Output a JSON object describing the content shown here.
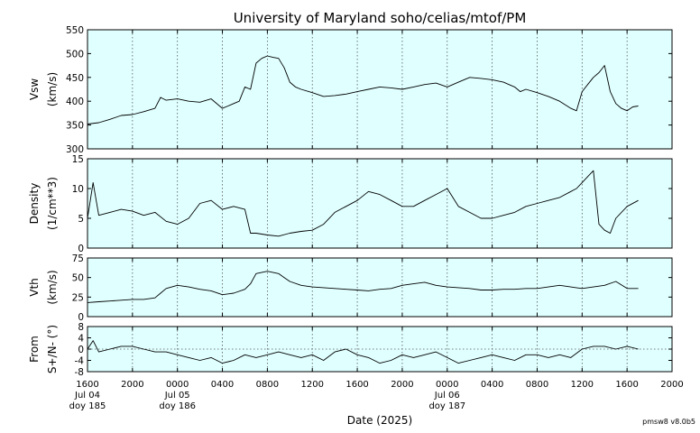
{
  "chart_data": {
    "type": "line",
    "title": "University of Maryland  soho/celias/mtof/PM",
    "xlabel": "Date (2025)",
    "credit": "pmsw8 v8.0b5",
    "grid": true,
    "background_color": "#e0ffff",
    "line_color": "#000000",
    "x_ticks": [
      {
        "hour": 0,
        "lines": [
          "1600",
          "Jul 04",
          "doy 185"
        ]
      },
      {
        "hour": 4,
        "lines": [
          "2000"
        ]
      },
      {
        "hour": 8,
        "lines": [
          "0000",
          "Jul 05",
          "doy 186"
        ]
      },
      {
        "hour": 12,
        "lines": [
          "0400"
        ]
      },
      {
        "hour": 16,
        "lines": [
          "0800"
        ]
      },
      {
        "hour": 20,
        "lines": [
          "1200"
        ]
      },
      {
        "hour": 24,
        "lines": [
          "1600"
        ]
      },
      {
        "hour": 28,
        "lines": [
          "2000"
        ]
      },
      {
        "hour": 32,
        "lines": [
          "0000",
          "Jul 06",
          "doy 187"
        ]
      },
      {
        "hour": 36,
        "lines": [
          "0400"
        ]
      },
      {
        "hour": 40,
        "lines": [
          "0800"
        ]
      },
      {
        "hour": 44,
        "lines": [
          "1200"
        ]
      },
      {
        "hour": 48,
        "lines": [
          "1600"
        ]
      },
      {
        "hour": 52,
        "lines": [
          "2000"
        ]
      }
    ],
    "x_range_hours_since_jul04_1600": [
      0,
      52
    ],
    "panels": [
      {
        "ylabel": [
          "Vsw",
          "(km/s)"
        ],
        "ylim": [
          300,
          550
        ],
        "yticks": [
          300,
          350,
          400,
          450,
          500,
          550
        ],
        "zero_line": null,
        "series": {
          "x_hours": [
            0,
            1,
            2,
            3,
            4,
            5,
            6,
            6.5,
            7,
            8,
            9,
            10,
            11,
            12,
            12.5,
            13,
            13.5,
            14,
            14.5,
            15,
            15.5,
            16,
            16.5,
            17,
            17.5,
            18,
            18.5,
            19,
            20,
            21,
            22,
            23,
            24,
            25,
            26,
            27,
            28,
            29,
            30,
            31,
            32,
            33,
            34,
            35,
            36,
            37,
            38,
            38.5,
            39,
            40,
            41,
            42,
            43,
            43.5,
            44,
            44.5,
            45,
            45.5,
            46,
            46.5,
            47,
            47.5,
            48,
            48.5,
            49
          ],
          "y": [
            352,
            355,
            362,
            370,
            372,
            378,
            385,
            408,
            402,
            405,
            400,
            398,
            405,
            385,
            390,
            395,
            400,
            430,
            425,
            480,
            490,
            495,
            492,
            490,
            470,
            440,
            430,
            425,
            418,
            410,
            412,
            415,
            420,
            425,
            430,
            428,
            425,
            430,
            435,
            438,
            430,
            440,
            450,
            448,
            445,
            440,
            430,
            420,
            425,
            418,
            410,
            400,
            385,
            380,
            420,
            435,
            450,
            460,
            475,
            420,
            395,
            385,
            380,
            388,
            390
          ]
        }
      },
      {
        "ylabel": [
          "Density",
          "(1/cm**3)"
        ],
        "ylim": [
          0,
          15
        ],
        "yticks": [
          0,
          5,
          10,
          15
        ],
        "zero_line": null,
        "series": {
          "x_hours": [
            0,
            0.5,
            1,
            2,
            3,
            4,
            5,
            6,
            7,
            8,
            9,
            10,
            11,
            12,
            13,
            14,
            14.5,
            15,
            16,
            17,
            18,
            19,
            20,
            21,
            22,
            23,
            24,
            25,
            26,
            27,
            28,
            29,
            30,
            31,
            32,
            33,
            34,
            35,
            36,
            37,
            38,
            39,
            40,
            41,
            42,
            43,
            43.5,
            44,
            44.5,
            45,
            45.5,
            46,
            46.5,
            47,
            48,
            49
          ],
          "y": [
            5,
            11,
            5.5,
            6,
            6.5,
            6.2,
            5.5,
            6,
            4.5,
            4,
            5,
            7.5,
            8,
            6.5,
            7,
            6.5,
            2.5,
            2.5,
            2.2,
            2,
            2.5,
            2.8,
            3,
            4,
            6,
            7,
            8,
            9.5,
            9,
            8,
            7,
            7,
            8,
            9,
            10,
            7,
            6,
            5,
            5,
            5.5,
            6,
            7,
            7.5,
            8,
            8.5,
            9.5,
            10,
            11,
            12,
            13,
            4,
            3,
            2.5,
            5,
            7,
            8
          ]
        }
      },
      {
        "ylabel": [
          "Vth",
          "(km/s)"
        ],
        "ylim": [
          0,
          75
        ],
        "yticks": [
          0,
          25,
          50,
          75
        ],
        "zero_line": null,
        "series": {
          "x_hours": [
            0,
            1,
            2,
            3,
            4,
            5,
            6,
            6.5,
            7,
            8,
            9,
            10,
            11,
            12,
            13,
            14,
            14.5,
            15,
            16,
            17,
            17.5,
            18,
            19,
            20,
            21,
            22,
            23,
            24,
            25,
            26,
            27,
            28,
            29,
            30,
            31,
            32,
            33,
            34,
            35,
            36,
            37,
            38,
            39,
            40,
            41,
            42,
            43,
            44,
            45,
            46,
            47,
            48,
            49
          ],
          "y": [
            18,
            19,
            20,
            21,
            22,
            22,
            24,
            30,
            36,
            40,
            38,
            35,
            33,
            28,
            30,
            35,
            42,
            55,
            58,
            55,
            50,
            45,
            40,
            38,
            37,
            36,
            35,
            34,
            33,
            35,
            36,
            40,
            42,
            44,
            40,
            38,
            37,
            36,
            34,
            34,
            35,
            35,
            36,
            36,
            38,
            40,
            38,
            36,
            38,
            40,
            45,
            36,
            36
          ]
        }
      },
      {
        "ylabel": [
          "From",
          "S+/N- (°)"
        ],
        "ylim": [
          -8,
          8
        ],
        "yticks": [
          -8,
          -4,
          0,
          4,
          8
        ],
        "zero_line": 0,
        "series": {
          "x_hours": [
            0,
            0.5,
            1,
            2,
            3,
            4,
            5,
            6,
            7,
            8,
            9,
            10,
            11,
            12,
            13,
            14,
            15,
            16,
            17,
            18,
            19,
            20,
            21,
            22,
            23,
            24,
            25,
            26,
            27,
            28,
            29,
            30,
            31,
            32,
            33,
            34,
            35,
            36,
            37,
            38,
            39,
            40,
            41,
            42,
            43,
            44,
            45,
            46,
            47,
            48,
            49
          ],
          "y": [
            0,
            3,
            -1,
            0,
            1,
            1,
            0,
            -1,
            -1,
            -2,
            -3,
            -4,
            -3,
            -5,
            -4,
            -2,
            -3,
            -2,
            -1,
            -2,
            -3,
            -2,
            -4,
            -1,
            0,
            -2,
            -3,
            -5,
            -4,
            -2,
            -3,
            -2,
            -1,
            -3,
            -5,
            -4,
            -3,
            -2,
            -3,
            -4,
            -2,
            -2,
            -3,
            -2,
            -3,
            0,
            1,
            1,
            0,
            1,
            0
          ]
        }
      }
    ]
  }
}
